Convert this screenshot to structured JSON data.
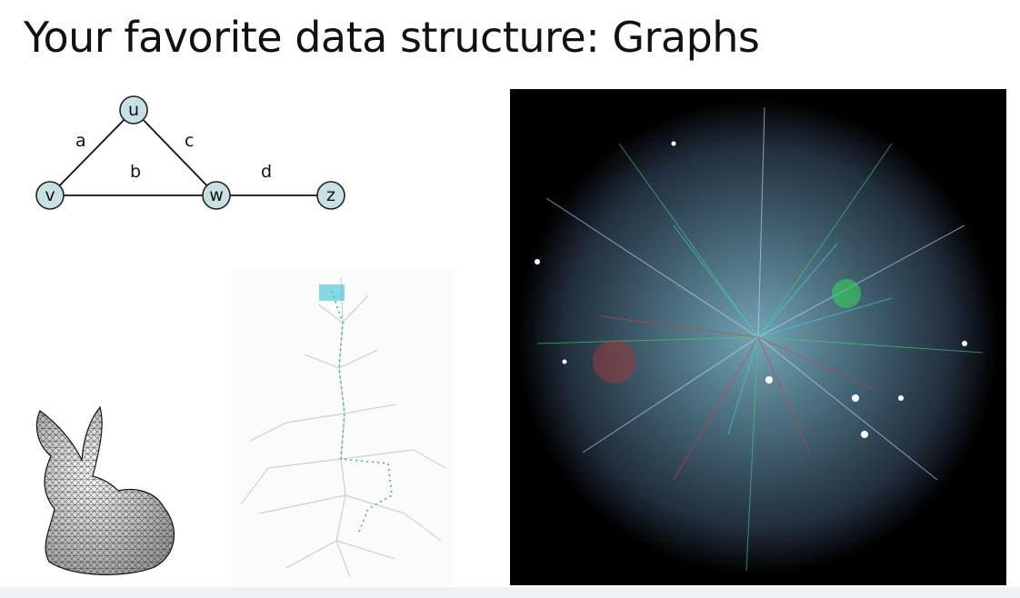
{
  "title": "Your favorite data structure: Graphs",
  "graph": {
    "nodes": [
      {
        "id": "u",
        "label": "u"
      },
      {
        "id": "v",
        "label": "v"
      },
      {
        "id": "w",
        "label": "w"
      },
      {
        "id": "z",
        "label": "z"
      }
    ],
    "edges": [
      {
        "from": "u",
        "to": "v",
        "label": "a"
      },
      {
        "from": "v",
        "to": "w",
        "label": "b"
      },
      {
        "from": "u",
        "to": "w",
        "label": "c"
      },
      {
        "from": "w",
        "to": "z",
        "label": "d"
      }
    ],
    "node_fill": "#c6e0e3",
    "edge_color": "#111111"
  },
  "images": [
    {
      "name": "stanford-bunny-mesh",
      "palette": "white-gray"
    },
    {
      "name": "tree-graph-with-green-path",
      "palette": "light-gray-green"
    },
    {
      "name": "internet-map",
      "palette": "black-rgb"
    }
  ]
}
